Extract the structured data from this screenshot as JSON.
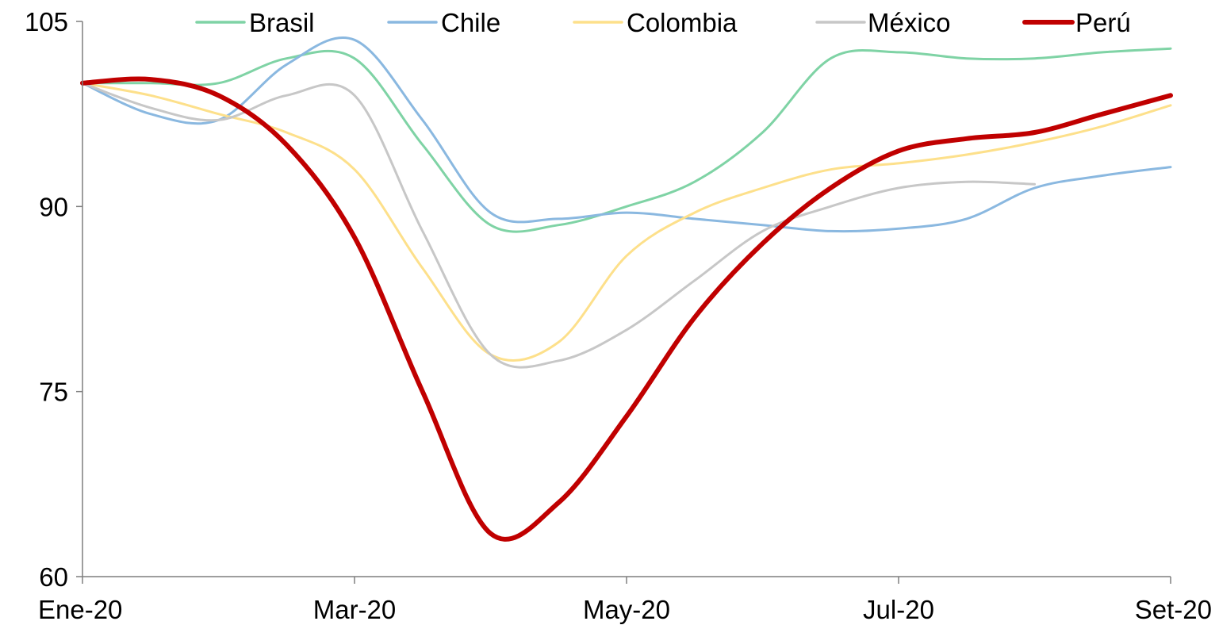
{
  "chart_data": {
    "type": "line",
    "title": "",
    "xlabel": "",
    "ylabel": "",
    "x_tick_labels": [
      "Ene-20",
      "Mar-20",
      "May-20",
      "Jul-20",
      "Set-20"
    ],
    "x_ticks": [
      0,
      2,
      4,
      6,
      8
    ],
    "xlim": [
      0,
      8
    ],
    "y_ticks": [
      60,
      75,
      90,
      105
    ],
    "ylim": [
      60,
      105
    ],
    "grid": false,
    "legend_position": "top",
    "series": [
      {
        "name": "Brasil",
        "color": "#7fd3a5",
        "points": [
          [
            0,
            100
          ],
          [
            0.5,
            100
          ],
          [
            1,
            100
          ],
          [
            1.5,
            102
          ],
          [
            2,
            102
          ],
          [
            2.5,
            95
          ],
          [
            3,
            88.5
          ],
          [
            3.5,
            88.5
          ],
          [
            4,
            90
          ],
          [
            4.5,
            92
          ],
          [
            5,
            96
          ],
          [
            5.5,
            102
          ],
          [
            6,
            102.5
          ],
          [
            6.5,
            102
          ],
          [
            7,
            102
          ],
          [
            7.5,
            102.5
          ],
          [
            8,
            102.8
          ]
        ]
      },
      {
        "name": "Chile",
        "color": "#8ab8e0",
        "points": [
          [
            0,
            100
          ],
          [
            0.5,
            97.5
          ],
          [
            1,
            97
          ],
          [
            1.5,
            101.5
          ],
          [
            2,
            103.5
          ],
          [
            2.5,
            97
          ],
          [
            3,
            89.5
          ],
          [
            3.5,
            89
          ],
          [
            4,
            89.5
          ],
          [
            4.5,
            89
          ],
          [
            5,
            88.5
          ],
          [
            5.5,
            88
          ],
          [
            6,
            88.2
          ],
          [
            6.5,
            89
          ],
          [
            7,
            91.5
          ],
          [
            7.5,
            92.5
          ],
          [
            8,
            93.2
          ]
        ]
      },
      {
        "name": "Colombia",
        "color": "#fde08b",
        "points": [
          [
            0,
            100
          ],
          [
            0.5,
            99
          ],
          [
            1,
            97.5
          ],
          [
            1.5,
            96
          ],
          [
            2,
            93
          ],
          [
            2.5,
            85
          ],
          [
            3,
            78
          ],
          [
            3.5,
            79
          ],
          [
            4,
            86
          ],
          [
            4.5,
            89.5
          ],
          [
            5,
            91.5
          ],
          [
            5.5,
            93
          ],
          [
            6,
            93.5
          ],
          [
            6.5,
            94.2
          ],
          [
            7,
            95.2
          ],
          [
            7.5,
            96.5
          ],
          [
            8,
            98.2
          ]
        ]
      },
      {
        "name": "México",
        "color": "#c7c7c7",
        "points": [
          [
            0,
            100
          ],
          [
            0.5,
            98
          ],
          [
            1,
            97
          ],
          [
            1.5,
            99
          ],
          [
            2,
            99
          ],
          [
            2.5,
            88
          ],
          [
            3,
            78
          ],
          [
            3.5,
            77.5
          ],
          [
            4,
            80
          ],
          [
            4.5,
            84
          ],
          [
            5,
            88
          ],
          [
            5.5,
            90
          ],
          [
            6,
            91.5
          ],
          [
            6.5,
            92
          ],
          [
            7,
            91.8
          ]
        ]
      },
      {
        "name": "Perú",
        "color": "#c00000",
        "points": [
          [
            0,
            100
          ],
          [
            0.5,
            100.3
          ],
          [
            1,
            99
          ],
          [
            1.5,
            95
          ],
          [
            2,
            87.5
          ],
          [
            2.5,
            75
          ],
          [
            3,
            63.5
          ],
          [
            3.5,
            66
          ],
          [
            4,
            73
          ],
          [
            4.5,
            81
          ],
          [
            5,
            87
          ],
          [
            5.5,
            91.5
          ],
          [
            6,
            94.5
          ],
          [
            6.5,
            95.5
          ],
          [
            7,
            96
          ],
          [
            7.5,
            97.5
          ],
          [
            8,
            99
          ]
        ]
      }
    ]
  }
}
